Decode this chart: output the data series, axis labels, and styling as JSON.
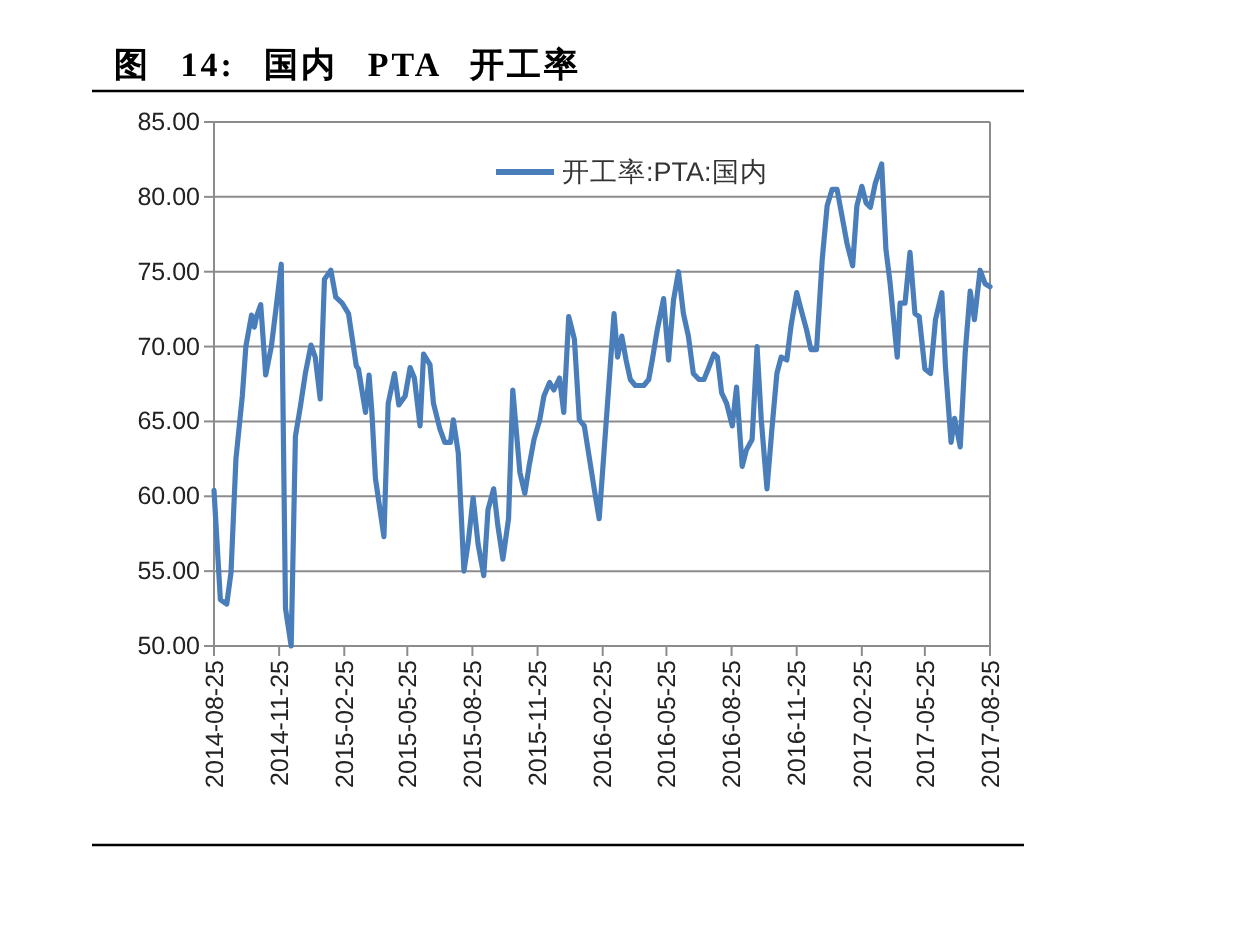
{
  "chart_data": {
    "type": "line",
    "title": "图 14: 国内 PTA 开工率",
    "x": [
      "2014-08-25",
      "2014-09-03",
      "2014-09-12",
      "2014-09-18",
      "2014-09-25",
      "2014-10-04",
      "2014-10-09",
      "2014-10-17",
      "2014-10-21",
      "2014-10-24",
      "2014-10-30",
      "2014-11-06",
      "2014-11-14",
      "2014-11-21",
      "2014-11-28",
      "2014-12-04",
      "2014-12-12",
      "2014-12-18",
      "2014-12-25",
      "2015-01-01",
      "2015-01-09",
      "2015-01-15",
      "2015-01-22",
      "2015-01-28",
      "2015-02-06",
      "2015-02-13",
      "2015-02-22",
      "2015-03-03",
      "2015-03-14",
      "2015-03-17",
      "2015-03-27",
      "2015-04-01",
      "2015-04-05",
      "2015-04-10",
      "2015-04-22",
      "2015-04-28",
      "2015-05-07",
      "2015-05-13",
      "2015-05-22",
      "2015-05-29",
      "2015-06-04",
      "2015-06-12",
      "2015-06-17",
      "2015-06-26",
      "2015-07-01",
      "2015-07-10",
      "2015-07-17",
      "2015-07-25",
      "2015-07-29",
      "2015-08-05",
      "2015-08-13",
      "2015-08-19",
      "2015-08-26",
      "2015-09-02",
      "2015-09-10",
      "2015-09-16",
      "2015-09-24",
      "2015-09-30",
      "2015-10-07",
      "2015-10-15",
      "2015-10-21",
      "2015-10-31",
      "2015-11-07",
      "2015-11-13",
      "2015-11-20",
      "2015-11-28",
      "2015-12-04",
      "2015-12-12",
      "2015-12-18",
      "2015-12-26",
      "2016-01-01",
      "2016-01-08",
      "2016-01-16",
      "2016-01-23",
      "2016-01-30",
      "2016-02-05",
      "2016-02-13",
      "2016-02-20",
      "2016-03-12",
      "2016-03-17",
      "2016-03-23",
      "2016-03-29",
      "2016-04-04",
      "2016-04-11",
      "2016-04-23",
      "2016-04-30",
      "2016-05-05",
      "2016-05-12",
      "2016-05-21",
      "2016-05-28",
      "2016-06-04",
      "2016-06-11",
      "2016-06-18",
      "2016-06-25",
      "2016-07-02",
      "2016-07-10",
      "2016-07-17",
      "2016-07-23",
      "2016-07-31",
      "2016-08-05",
      "2016-08-11",
      "2016-08-18",
      "2016-08-26",
      "2016-09-01",
      "2016-09-09",
      "2016-09-15",
      "2016-09-23",
      "2016-09-30",
      "2016-10-06",
      "2016-10-14",
      "2016-10-21",
      "2016-10-28",
      "2016-11-03",
      "2016-11-11",
      "2016-11-17",
      "2016-11-25",
      "2016-12-01",
      "2016-12-09",
      "2016-12-15",
      "2016-12-23",
      "2016-12-31",
      "2017-01-07",
      "2017-01-14",
      "2017-01-21",
      "2017-01-28",
      "2017-02-04",
      "2017-02-12",
      "2017-02-18",
      "2017-02-25",
      "2017-03-03",
      "2017-03-09",
      "2017-03-16",
      "2017-03-25",
      "2017-03-31",
      "2017-04-06",
      "2017-04-16",
      "2017-04-20",
      "2017-04-27",
      "2017-05-04",
      "2017-05-11",
      "2017-05-17",
      "2017-05-25",
      "2017-06-02",
      "2017-06-09",
      "2017-06-18",
      "2017-06-23",
      "2017-07-01",
      "2017-07-06",
      "2017-07-14",
      "2017-07-21",
      "2017-07-28",
      "2017-08-03",
      "2017-08-11",
      "2017-08-18",
      "2017-08-25"
    ],
    "series": [
      {
        "name": "开工率:PTA:国内",
        "color": "#4a7ebb",
        "values": [
          60.4,
          53.1,
          52.8,
          54.9,
          62.5,
          66.7,
          70.0,
          72.1,
          71.3,
          72.0,
          72.8,
          68.1,
          70.0,
          72.7,
          75.5,
          52.5,
          50.0,
          64.0,
          66.0,
          68.2,
          70.1,
          69.3,
          66.5,
          74.5,
          75.1,
          73.3,
          72.9,
          72.2,
          68.7,
          68.5,
          65.6,
          68.1,
          65.6,
          61.2,
          57.3,
          66.2,
          68.2,
          66.1,
          66.7,
          68.6,
          67.9,
          64.7,
          69.5,
          68.8,
          66.2,
          64.5,
          63.6,
          63.6,
          65.1,
          62.9,
          55.0,
          56.9,
          59.9,
          56.8,
          54.7,
          59.1,
          60.5,
          58.0,
          55.8,
          58.5,
          67.1,
          61.6,
          60.2,
          62.0,
          63.8,
          65.1,
          66.7,
          67.6,
          67.1,
          67.9,
          65.6,
          72.0,
          70.5,
          65.1,
          64.7,
          62.9,
          60.5,
          58.5,
          72.2,
          69.3,
          70.7,
          69.1,
          67.8,
          67.4,
          67.4,
          67.8,
          69.1,
          71.1,
          73.2,
          69.1,
          73.1,
          75.0,
          72.2,
          70.7,
          68.2,
          67.8,
          67.8,
          68.5,
          69.5,
          69.3,
          66.9,
          66.2,
          64.7,
          67.3,
          62.0,
          63.1,
          63.8,
          70.0,
          65.1,
          60.5,
          64.5,
          68.2,
          69.3,
          69.1,
          71.4,
          73.6,
          72.5,
          71.1,
          69.8,
          69.8,
          75.8,
          79.4,
          80.5,
          80.5,
          78.7,
          76.9,
          75.4,
          79.4,
          80.7,
          79.6,
          79.3,
          80.9,
          82.2,
          76.5,
          74.2,
          69.3,
          72.9,
          72.9,
          76.3,
          72.2,
          72.0,
          68.5,
          68.2,
          71.8,
          73.6,
          68.7,
          63.6,
          65.2,
          63.3,
          69.6,
          73.7,
          71.8,
          75.1,
          74.2,
          74.0
        ]
      }
    ],
    "xlim": [
      "2014-08-25",
      "2017-08-25"
    ],
    "xticks": [
      "2014-08-25",
      "2014-11-25",
      "2015-02-25",
      "2015-05-25",
      "2015-08-25",
      "2015-11-25",
      "2016-02-25",
      "2016-05-25",
      "2016-08-25",
      "2016-11-25",
      "2017-02-25",
      "2017-05-25",
      "2017-08-25"
    ],
    "ylim": [
      50,
      85
    ],
    "yticks": [
      {
        "value": 50,
        "label": "50.00"
      },
      {
        "value": 55,
        "label": "55.00"
      },
      {
        "value": 60,
        "label": "60.00"
      },
      {
        "value": 65,
        "label": "65.00"
      },
      {
        "value": 70,
        "label": "70.00"
      },
      {
        "value": 75,
        "label": "75.00"
      },
      {
        "value": 80,
        "label": "80.00"
      },
      {
        "value": 85,
        "label": "85.00"
      }
    ],
    "grid": "y",
    "legend": "top"
  }
}
